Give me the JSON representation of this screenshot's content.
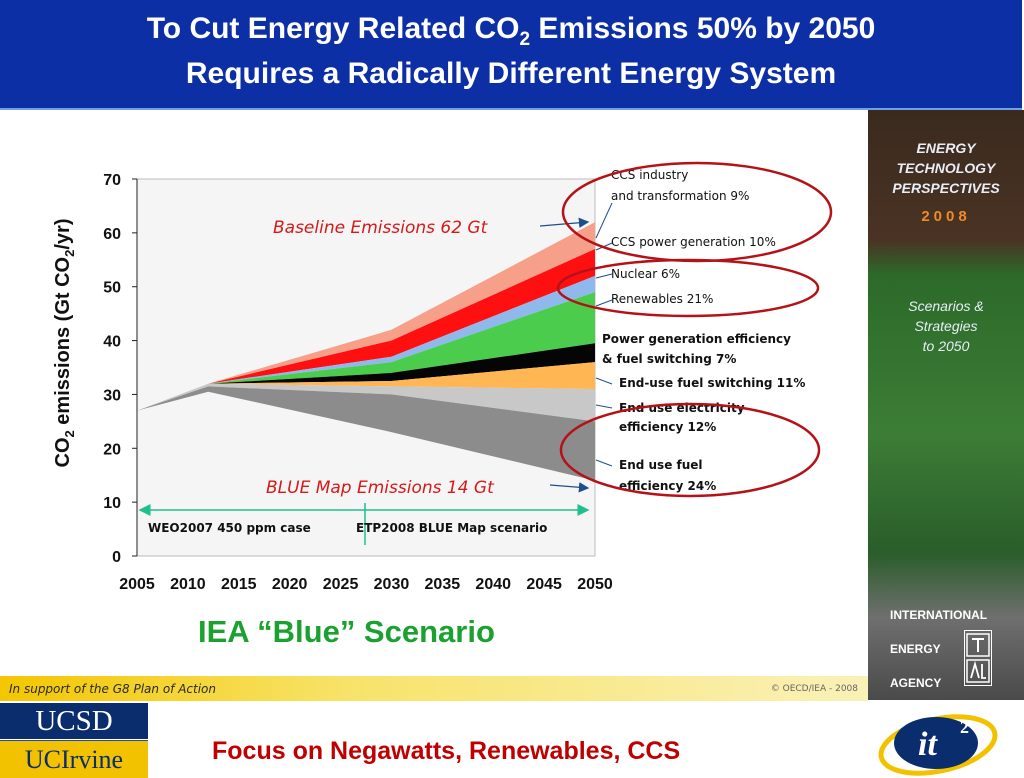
{
  "slide": {
    "title_line1_a": "To Cut Energy Related CO",
    "title_line1_sub": "2",
    "title_line1_b": " Emissions 50% by 2050",
    "title_line2": "Requires a Radically Different Energy System",
    "scenario_label": "IEA “Blue” Scenario",
    "bottom_title": "Focus on Negawatts, Renewables, CCS",
    "g8_text": "In support of the G8 Plan of Action",
    "oecd_text": "© OECD/IEA - 2008",
    "ucsd": "UCSD",
    "ucirvine": "UCIrvine",
    "it2": "it",
    "it2_sup": "2"
  },
  "etp_panel": {
    "line1": "ENERGY",
    "line2": "TECHNOLOGY",
    "line3": "PERSPECTIVES",
    "year": "2008",
    "sub1": "Scenarios &",
    "sub2": "Strategies",
    "sub3": "to 2050",
    "iea1": "INTERNATIONAL",
    "iea2": "ENERGY",
    "iea3": "AGENCY"
  },
  "chart_data": {
    "type": "area",
    "ylabel_a": "CO",
    "ylabel_sub": "2",
    "ylabel_b": " emissions (Gt CO",
    "ylabel_sub2": "2",
    "ylabel_c": "/yr)",
    "ylim": [
      0,
      70
    ],
    "yticks": [
      "0",
      "10",
      "20",
      "30",
      "40",
      "50",
      "60",
      "70"
    ],
    "xlim": [
      2005,
      2050
    ],
    "xticks": [
      "2005",
      "2010",
      "2015",
      "2020",
      "2025",
      "2030",
      "2035",
      "2040",
      "2045",
      "2050"
    ],
    "x": [
      2005,
      2012,
      2030,
      2050
    ],
    "baseline_label": "Baseline Emissions 62 Gt",
    "blue_label": "BLUE Map Emissions 14 Gt",
    "bottom_segments": [
      "WEO2007 450 ppm case",
      "ETP2008 BLUE Map scenario"
    ],
    "bands": [
      {
        "name": "CCS industry and transformation 9%",
        "color": "#f6a08a",
        "lower": [
          27,
          32,
          40,
          57
        ],
        "upper": [
          27,
          32,
          42,
          62
        ]
      },
      {
        "name": "CCS power generation 10%",
        "color": "#ff1010",
        "lower": [
          27,
          32,
          37,
          52
        ],
        "upper": [
          27,
          32,
          40,
          57
        ]
      },
      {
        "name": "Nuclear 6%",
        "color": "#8fb9ec",
        "lower": [
          27,
          32,
          36,
          49
        ],
        "upper": [
          27,
          32,
          37,
          52
        ]
      },
      {
        "name": "Renewables 21%",
        "color": "#4ccc4c",
        "lower": [
          27,
          32,
          34,
          39.5
        ],
        "upper": [
          27,
          32,
          36,
          49
        ]
      },
      {
        "name": "Power generation efficiency & fuel switching 7%",
        "color": "#050505",
        "lower": [
          27,
          32,
          32.5,
          36
        ],
        "upper": [
          27,
          32,
          34,
          39.5
        ]
      },
      {
        "name": "End-use fuel switching 11%",
        "color": "#ffb653",
        "lower": [
          27,
          32,
          31.5,
          31
        ],
        "upper": [
          27,
          32,
          32.5,
          36
        ]
      },
      {
        "name": "End use electricity efficiency 12%",
        "color": "#c8c8c8",
        "lower": [
          27,
          31.5,
          30,
          25
        ],
        "upper": [
          27,
          32,
          31.5,
          31
        ]
      },
      {
        "name": "End use fuel efficiency 24%",
        "color": "#8c8c8c",
        "lower": [
          27,
          30.5,
          23,
          14
        ],
        "upper": [
          27,
          31.5,
          30,
          25
        ]
      }
    ],
    "annotations": [
      {
        "line1": "CCS industry",
        "line2": "and transformation 9%"
      },
      {
        "line1": "CCS power generation 10%",
        "line2": ""
      },
      {
        "line1": "Nuclear 6%",
        "line2": ""
      },
      {
        "line1": "Renewables 21%",
        "line2": ""
      },
      {
        "line1": "Power generation efficiency",
        "line2": "& fuel switching 7%"
      },
      {
        "line1": "End-use fuel switching 11%",
        "line2": ""
      },
      {
        "line1": "End use electricity",
        "line2": "efficiency 12%"
      },
      {
        "line1": "End use fuel",
        "line2": "efficiency 24%"
      }
    ],
    "colors": {
      "baseline_label": "#d61a1a",
      "blue_label": "#d61a1a",
      "circle": "#b51218",
      "arrow": "#1f4e8c",
      "span_arrow": "#1fbf8f"
    }
  }
}
